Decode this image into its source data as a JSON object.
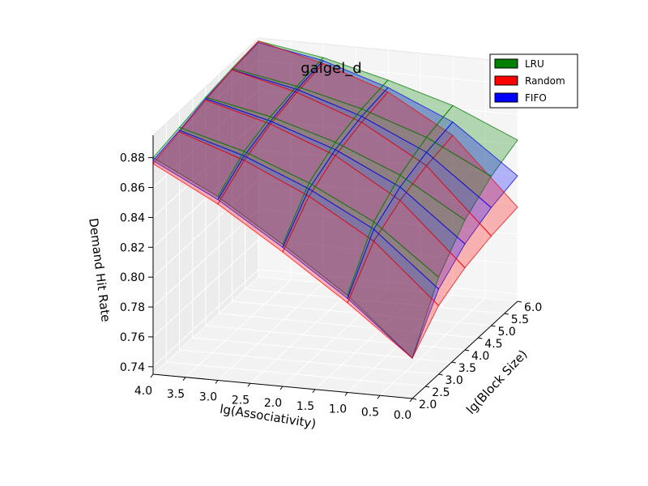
{
  "chart_data": {
    "type": "surface3d",
    "title": "galgel_d",
    "xlabel": "lg(Associativity)",
    "ylabel": "lg(Block Size)",
    "zlabel": "Demand Hit Rate",
    "x_values": [
      0.0,
      1.0,
      2.0,
      3.0,
      4.0
    ],
    "y_values": [
      2.0,
      3.0,
      4.0,
      5.0,
      6.0
    ],
    "xlim": [
      0.0,
      4.0
    ],
    "ylim": [
      2.0,
      6.0
    ],
    "zlim": [
      0.735,
      0.895
    ],
    "x_ticks": [
      "0.0",
      "0.5",
      "1.0",
      "1.5",
      "2.0",
      "2.5",
      "3.0",
      "3.5",
      "4.0"
    ],
    "y_ticks": [
      "2.0",
      "2.5",
      "3.0",
      "3.5",
      "4.0",
      "4.5",
      "5.0",
      "5.5",
      "6.0"
    ],
    "z_ticks": [
      "0.74",
      "0.76",
      "0.78",
      "0.80",
      "0.82",
      "0.84",
      "0.86",
      "0.88"
    ],
    "grid": true,
    "legend_position": "top-right",
    "series": [
      {
        "name": "LRU",
        "color": "#008000",
        "z": [
          [
            0.762,
            0.8,
            0.83,
            0.858,
            0.88
          ],
          [
            0.8,
            0.833,
            0.855,
            0.872,
            0.884
          ],
          [
            0.822,
            0.848,
            0.866,
            0.879,
            0.888
          ],
          [
            0.835,
            0.857,
            0.872,
            0.883,
            0.891
          ],
          [
            0.843,
            0.862,
            0.875,
            0.886,
            0.893
          ]
        ]
      },
      {
        "name": "Random",
        "color": "#ff0000",
        "z": [
          [
            0.762,
            0.795,
            0.825,
            0.853,
            0.876
          ],
          [
            0.781,
            0.82,
            0.846,
            0.866,
            0.881
          ],
          [
            0.79,
            0.831,
            0.857,
            0.874,
            0.886
          ],
          [
            0.795,
            0.838,
            0.863,
            0.879,
            0.89
          ],
          [
            0.798,
            0.842,
            0.867,
            0.882,
            0.893
          ]
        ]
      },
      {
        "name": "FIFO",
        "color": "#0000ff",
        "z": [
          [
            0.762,
            0.798,
            0.828,
            0.856,
            0.878
          ],
          [
            0.792,
            0.828,
            0.851,
            0.869,
            0.882
          ],
          [
            0.806,
            0.84,
            0.861,
            0.876,
            0.887
          ],
          [
            0.814,
            0.847,
            0.867,
            0.881,
            0.89
          ],
          [
            0.819,
            0.851,
            0.87,
            0.884,
            0.892
          ]
        ]
      }
    ]
  }
}
